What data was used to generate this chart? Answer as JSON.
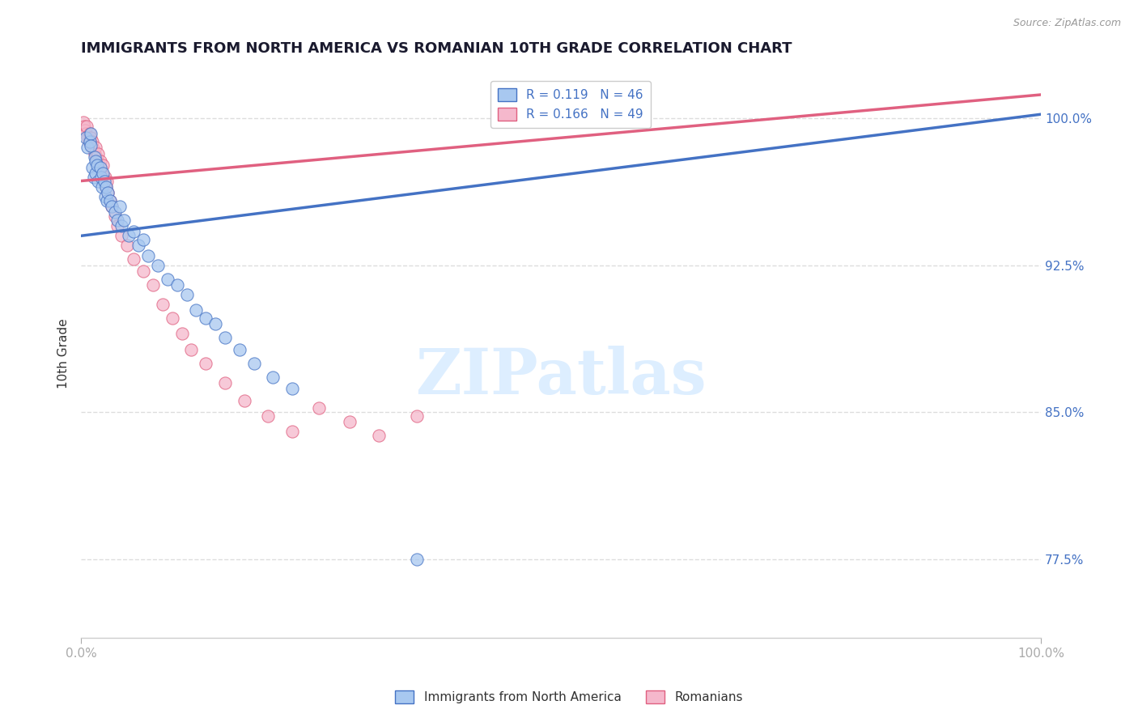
{
  "title": "IMMIGRANTS FROM NORTH AMERICA VS ROMANIAN 10TH GRADE CORRELATION CHART",
  "source_text": "Source: ZipAtlas.com",
  "ylabel": "10th Grade",
  "xlim": [
    0.0,
    1.0
  ],
  "ylim": [
    0.735,
    1.025
  ],
  "yticks": [
    0.775,
    0.85,
    0.925,
    1.0
  ],
  "ytick_labels": [
    "77.5%",
    "85.0%",
    "92.5%",
    "100.0%"
  ],
  "xtick_labels": [
    "0.0%",
    "100.0%"
  ],
  "xticks": [
    0.0,
    1.0
  ],
  "blue_label": "Immigrants from North America",
  "pink_label": "Romanians",
  "blue_color": "#a8c8f0",
  "pink_color": "#f5b8cc",
  "blue_edge_color": "#4472c4",
  "pink_edge_color": "#e06080",
  "legend_blue_R": "R = 0.119",
  "legend_blue_N": "N = 46",
  "legend_pink_R": "R = 0.166",
  "legend_pink_N": "N = 49",
  "watermark": "ZIPatlas",
  "watermark_color": "#ddeeff",
  "blue_line_start_y": 0.94,
  "blue_line_end_y": 1.002,
  "pink_line_start_y": 0.968,
  "pink_line_end_y": 1.012,
  "right_ytick_color": "#4472c4",
  "grid_color": "#dddddd",
  "marker_size": 120,
  "blue_scatter_x": [
    0.005,
    0.007,
    0.009,
    0.01,
    0.01,
    0.012,
    0.013,
    0.014,
    0.015,
    0.015,
    0.017,
    0.018,
    0.02,
    0.021,
    0.022,
    0.023,
    0.024,
    0.025,
    0.026,
    0.027,
    0.028,
    0.03,
    0.032,
    0.035,
    0.038,
    0.04,
    0.042,
    0.045,
    0.05,
    0.055,
    0.06,
    0.065,
    0.07,
    0.08,
    0.09,
    0.1,
    0.11,
    0.12,
    0.13,
    0.14,
    0.15,
    0.165,
    0.18,
    0.2,
    0.22,
    0.35
  ],
  "blue_scatter_y": [
    0.99,
    0.985,
    0.988,
    0.992,
    0.986,
    0.975,
    0.97,
    0.98,
    0.978,
    0.972,
    0.976,
    0.968,
    0.975,
    0.97,
    0.965,
    0.972,
    0.968,
    0.96,
    0.965,
    0.958,
    0.962,
    0.958,
    0.955,
    0.952,
    0.948,
    0.955,
    0.945,
    0.948,
    0.94,
    0.942,
    0.935,
    0.938,
    0.93,
    0.925,
    0.918,
    0.915,
    0.91,
    0.902,
    0.898,
    0.895,
    0.888,
    0.882,
    0.875,
    0.868,
    0.862,
    0.775
  ],
  "pink_scatter_x": [
    0.002,
    0.003,
    0.004,
    0.005,
    0.006,
    0.007,
    0.008,
    0.009,
    0.01,
    0.011,
    0.012,
    0.013,
    0.014,
    0.015,
    0.016,
    0.017,
    0.018,
    0.019,
    0.02,
    0.021,
    0.022,
    0.023,
    0.024,
    0.025,
    0.026,
    0.027,
    0.028,
    0.03,
    0.032,
    0.035,
    0.038,
    0.042,
    0.048,
    0.055,
    0.065,
    0.075,
    0.085,
    0.095,
    0.105,
    0.115,
    0.13,
    0.15,
    0.17,
    0.195,
    0.22,
    0.248,
    0.28,
    0.31,
    0.35
  ],
  "pink_scatter_y": [
    0.998,
    0.996,
    0.994,
    0.992,
    0.996,
    0.99,
    0.988,
    0.992,
    0.99,
    0.986,
    0.988,
    0.984,
    0.982,
    0.985,
    0.98,
    0.978,
    0.982,
    0.976,
    0.978,
    0.974,
    0.972,
    0.976,
    0.968,
    0.97,
    0.965,
    0.968,
    0.962,
    0.958,
    0.955,
    0.95,
    0.945,
    0.94,
    0.935,
    0.928,
    0.922,
    0.915,
    0.905,
    0.898,
    0.89,
    0.882,
    0.875,
    0.865,
    0.856,
    0.848,
    0.84,
    0.852,
    0.845,
    0.838,
    0.848
  ]
}
